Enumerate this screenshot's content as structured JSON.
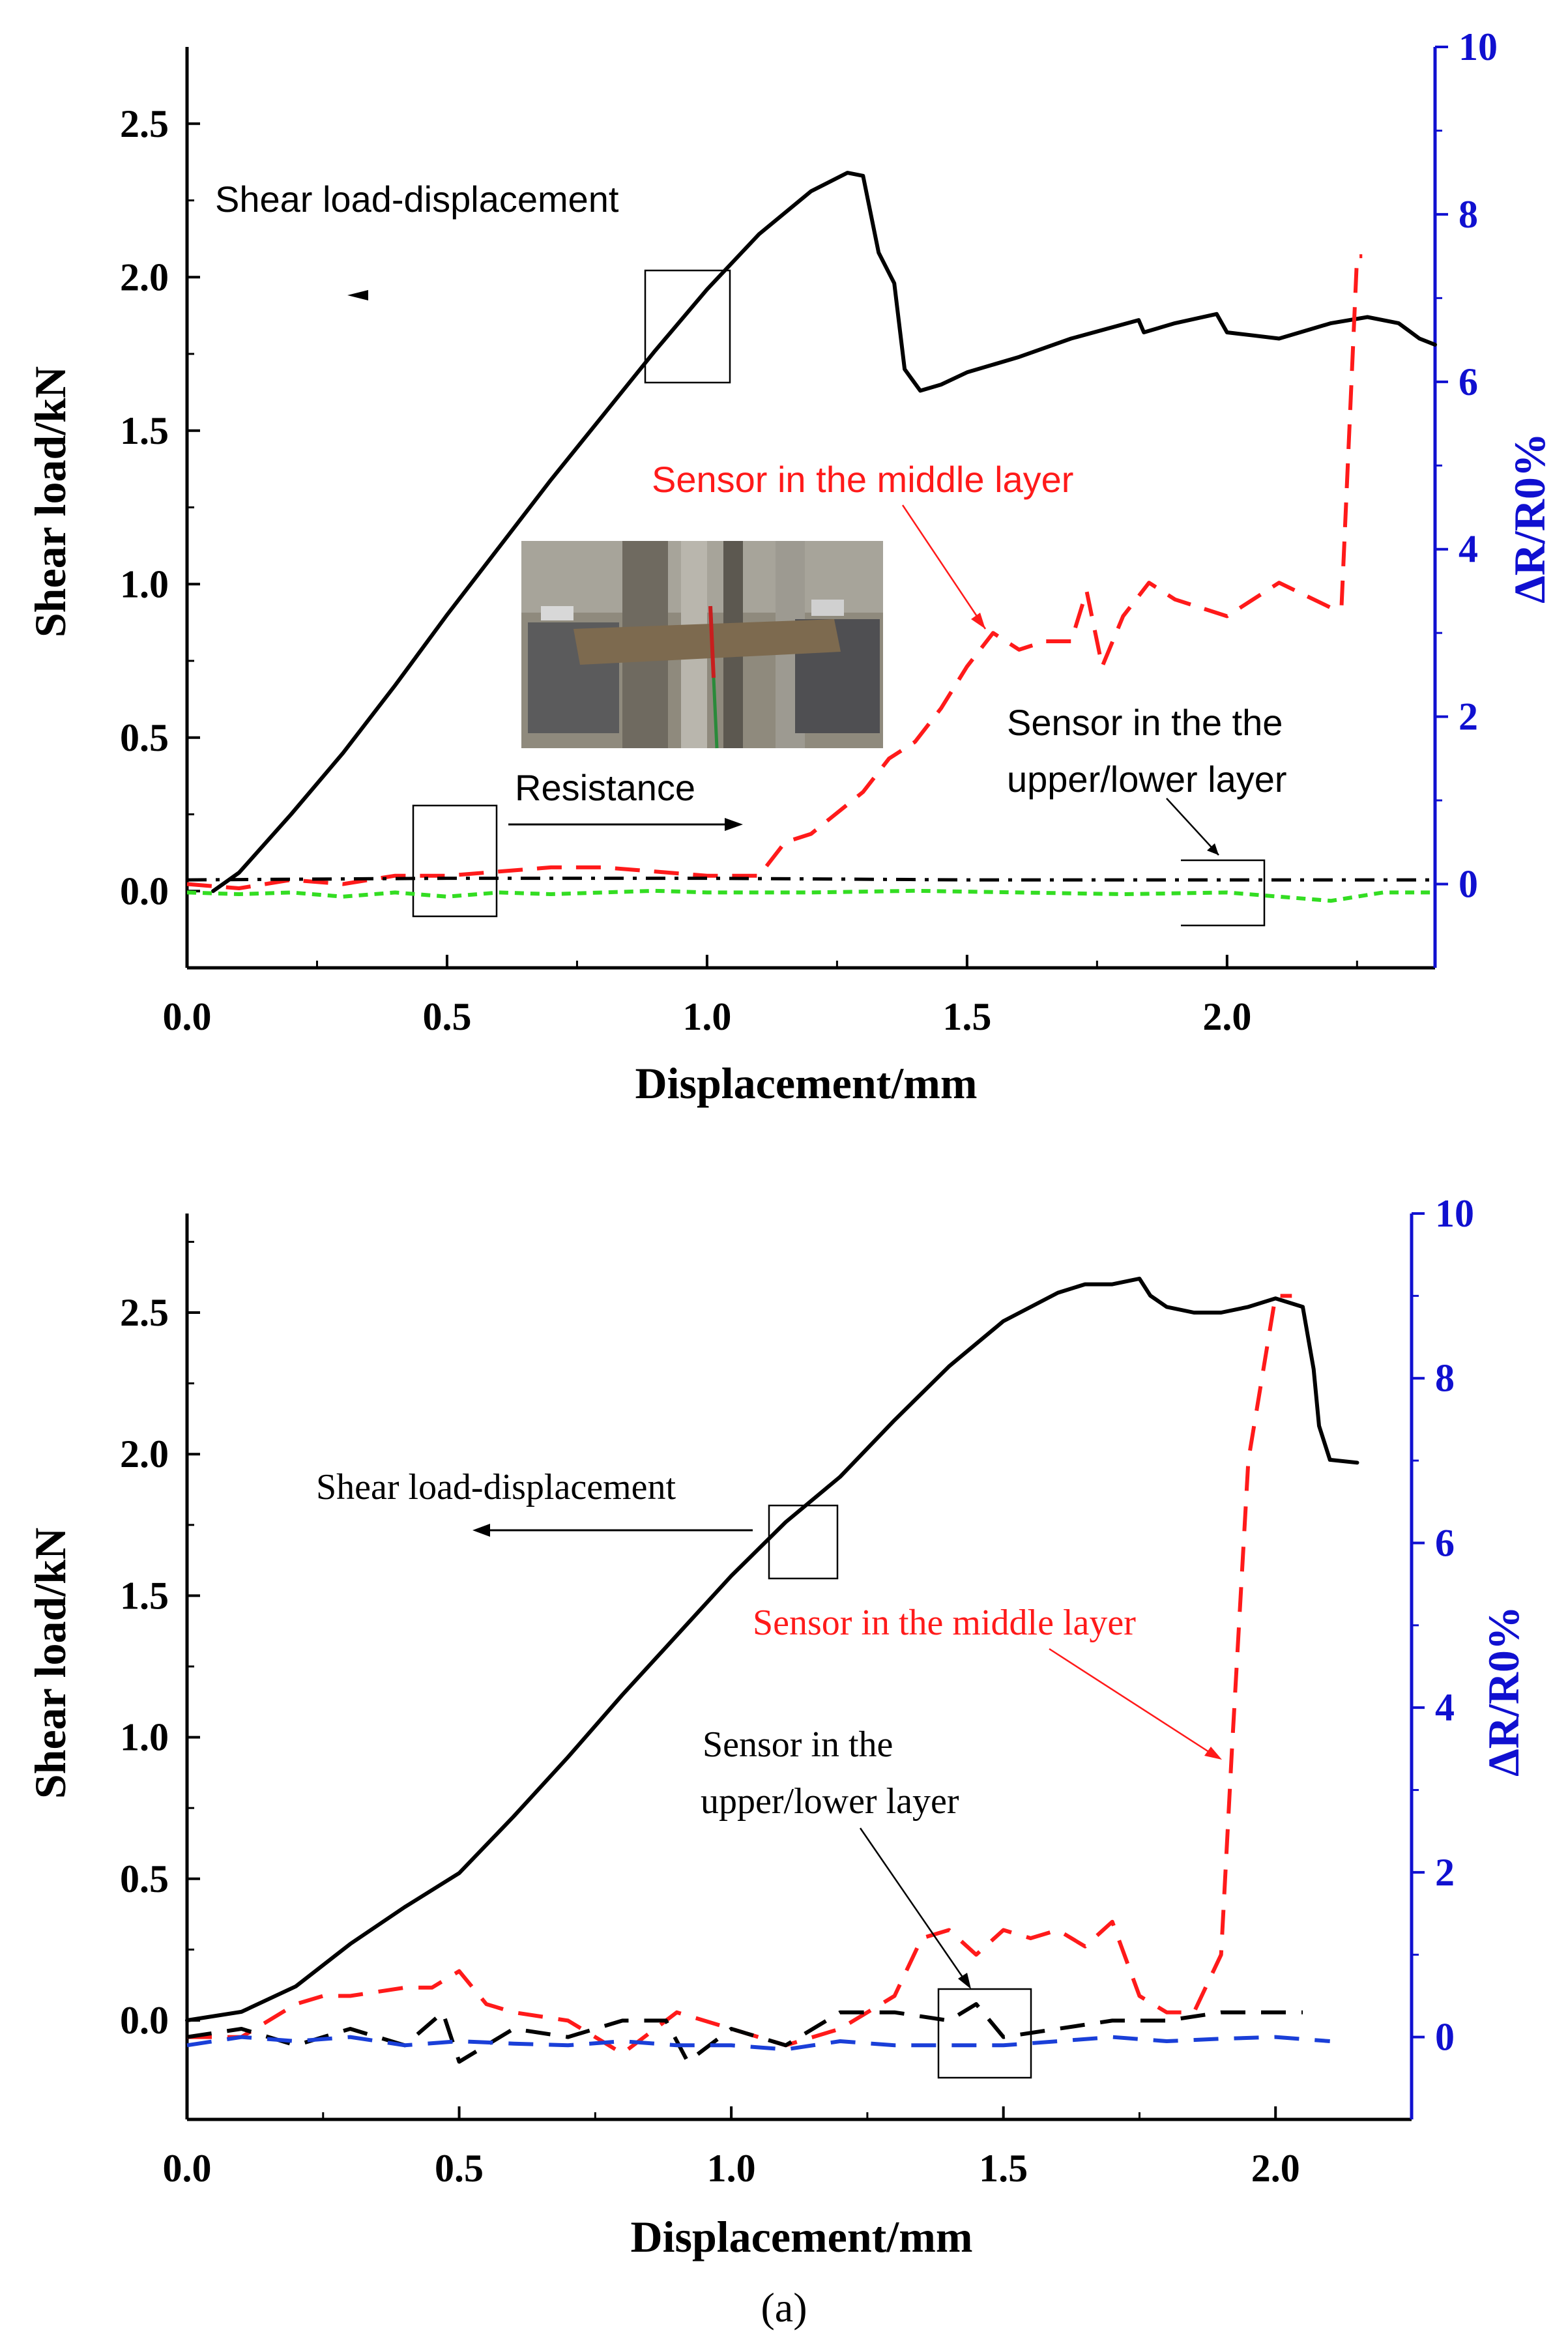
{
  "caption": "(a)",
  "colors": {
    "axis": "#000000",
    "right_axis": "#1010d0",
    "load_curve": "#000000",
    "middle_sensor": "#ff1a1a",
    "outer_sensor": "#000000",
    "outer_sensor_2_top": "#33dd22",
    "outer_sensor_2_bottom": "#1a3fd8",
    "photo_bg": "#8a8474"
  },
  "chart_data": [
    {
      "type": "line",
      "xlabel": "Displacement/mm",
      "ylabel": "Shear load/kN",
      "y2label": "ΔR/R0%",
      "xlim": [
        0,
        2.4
      ],
      "ylim": [
        -0.25,
        2.75
      ],
      "y2lim": [
        -1,
        10
      ],
      "xticks": [
        "0.0",
        "0.5",
        "1.0",
        "1.5",
        "2.0"
      ],
      "yticks": [
        "0.0",
        "0.5",
        "1.0",
        "1.5",
        "2.0",
        "2.5"
      ],
      "y2ticks": [
        "0",
        "2",
        "4",
        "6",
        "8",
        "10"
      ],
      "annotations": {
        "load": "Shear load-displacement",
        "middle": "Sensor in the middle layer",
        "outer_line1": "Sensor in the the",
        "outer_line2": "upper/lower layer",
        "resistance": "Resistance"
      },
      "series": [
        {
          "axis": "left",
          "style": "solid",
          "x": [
            0.05,
            0.1,
            0.2,
            0.3,
            0.4,
            0.5,
            0.6,
            0.7,
            0.8,
            0.9,
            1.0,
            1.1,
            1.2,
            1.27,
            1.3,
            1.33,
            1.36,
            1.38,
            1.41,
            1.45,
            1.5,
            1.6,
            1.7,
            1.83,
            1.84,
            1.9,
            1.98,
            2.0,
            2.05,
            2.1,
            2.2,
            2.27,
            2.33,
            2.37,
            2.4
          ],
          "y": [
            0.0,
            0.06,
            0.25,
            0.45,
            0.67,
            0.9,
            1.12,
            1.34,
            1.55,
            1.76,
            1.96,
            2.14,
            2.28,
            2.34,
            2.33,
            2.08,
            1.98,
            1.7,
            1.63,
            1.65,
            1.69,
            1.74,
            1.8,
            1.86,
            1.82,
            1.85,
            1.88,
            1.82,
            1.81,
            1.8,
            1.85,
            1.87,
            1.85,
            1.8,
            1.78
          ]
        },
        {
          "axis": "right",
          "style": "dashed",
          "x": [
            0.0,
            0.1,
            0.2,
            0.3,
            0.4,
            0.5,
            0.6,
            0.7,
            0.8,
            0.9,
            1.0,
            1.1,
            1.15,
            1.2,
            1.3,
            1.35,
            1.4,
            1.45,
            1.5,
            1.55,
            1.6,
            1.65,
            1.7,
            1.73,
            1.76,
            1.8,
            1.85,
            1.9,
            2.0,
            2.1,
            2.2,
            2.22,
            2.25,
            2.26
          ],
          "y": [
            0.0,
            -0.05,
            0.05,
            0.0,
            0.1,
            0.1,
            0.15,
            0.2,
            0.2,
            0.15,
            0.1,
            0.1,
            0.5,
            0.6,
            1.1,
            1.5,
            1.7,
            2.1,
            2.6,
            3.0,
            2.8,
            2.9,
            2.9,
            3.5,
            2.6,
            3.2,
            3.6,
            3.4,
            3.2,
            3.6,
            3.3,
            3.3,
            7.5,
            7.5
          ]
        },
        {
          "axis": "right",
          "style": "dash-dot",
          "x": [
            0.0,
            0.5,
            1.0,
            1.5,
            2.0,
            2.4
          ],
          "y": [
            0.05,
            0.07,
            0.07,
            0.05,
            0.05,
            0.05
          ]
        },
        {
          "axis": "right",
          "style": "dotted",
          "x": [
            0.0,
            0.1,
            0.2,
            0.3,
            0.4,
            0.5,
            0.6,
            0.7,
            0.8,
            0.9,
            1.0,
            1.2,
            1.4,
            1.6,
            1.8,
            2.0,
            2.1,
            2.2,
            2.3,
            2.4
          ],
          "y": [
            -0.1,
            -0.12,
            -0.1,
            -0.15,
            -0.1,
            -0.15,
            -0.1,
            -0.12,
            -0.1,
            -0.08,
            -0.1,
            -0.1,
            -0.08,
            -0.1,
            -0.12,
            -0.1,
            -0.15,
            -0.2,
            -0.1,
            -0.1
          ]
        }
      ]
    },
    {
      "type": "line",
      "xlabel": "Displacement/mm",
      "ylabel": "Shear load/kN",
      "y2label": "ΔR/R0%",
      "xlim": [
        0,
        2.25
      ],
      "ylim": [
        -0.35,
        2.85
      ],
      "y2lim": [
        -1,
        10
      ],
      "xticks": [
        "0.0",
        "0.5",
        "1.0",
        "1.5",
        "2.0"
      ],
      "yticks": [
        "0.0",
        "0.5",
        "1.0",
        "1.5",
        "2.0",
        "2.5"
      ],
      "y2ticks": [
        "0",
        "2",
        "4",
        "6",
        "8",
        "10"
      ],
      "annotations": {
        "load": "Shear load-displacement",
        "middle": "Sensor in the middle layer",
        "outer_line1": "Sensor in the",
        "outer_line2": "upper/lower layer"
      },
      "series": [
        {
          "axis": "left",
          "style": "solid",
          "x": [
            0.0,
            0.1,
            0.2,
            0.3,
            0.4,
            0.5,
            0.6,
            0.7,
            0.8,
            0.9,
            1.0,
            1.1,
            1.2,
            1.3,
            1.4,
            1.5,
            1.6,
            1.65,
            1.7,
            1.75,
            1.77,
            1.8,
            1.85,
            1.9,
            1.95,
            2.0,
            2.05,
            2.07,
            2.08,
            2.1,
            2.15
          ],
          "y": [
            0.0,
            0.03,
            0.12,
            0.27,
            0.4,
            0.52,
            0.72,
            0.93,
            1.15,
            1.36,
            1.57,
            1.76,
            1.92,
            2.12,
            2.31,
            2.47,
            2.57,
            2.6,
            2.6,
            2.62,
            2.56,
            2.52,
            2.5,
            2.5,
            2.52,
            2.55,
            2.52,
            2.3,
            2.1,
            1.98,
            1.97
          ]
        },
        {
          "axis": "right",
          "style": "dashed",
          "x": [
            0.0,
            0.1,
            0.2,
            0.25,
            0.3,
            0.4,
            0.45,
            0.5,
            0.55,
            0.6,
            0.7,
            0.8,
            0.9,
            1.0,
            1.1,
            1.2,
            1.3,
            1.35,
            1.4,
            1.45,
            1.5,
            1.55,
            1.6,
            1.65,
            1.7,
            1.75,
            1.8,
            1.85,
            1.9,
            1.92,
            1.95,
            2.0,
            2.03
          ],
          "y": [
            0.0,
            0.0,
            0.4,
            0.5,
            0.5,
            0.6,
            0.6,
            0.8,
            0.4,
            0.3,
            0.2,
            -0.2,
            0.3,
            0.1,
            -0.1,
            0.1,
            0.5,
            1.2,
            1.3,
            1.0,
            1.3,
            1.2,
            1.3,
            1.1,
            1.4,
            0.5,
            0.3,
            0.3,
            1.0,
            3.5,
            7.0,
            9.0,
            9.0
          ]
        },
        {
          "axis": "right",
          "style": "dashed",
          "x": [
            0.0,
            0.1,
            0.2,
            0.3,
            0.4,
            0.47,
            0.5,
            0.6,
            0.7,
            0.8,
            0.88,
            0.92,
            1.0,
            1.1,
            1.2,
            1.3,
            1.4,
            1.45,
            1.5,
            1.6,
            1.7,
            1.8,
            1.9,
            2.0,
            2.05
          ],
          "y": [
            0.0,
            0.1,
            -0.1,
            0.1,
            -0.1,
            0.3,
            -0.3,
            0.1,
            0.0,
            0.2,
            0.2,
            -0.3,
            0.1,
            -0.1,
            0.3,
            0.3,
            0.2,
            0.4,
            0.0,
            0.1,
            0.2,
            0.2,
            0.3,
            0.3,
            0.3
          ]
        },
        {
          "axis": "right",
          "style": "dashed",
          "x": [
            0.0,
            0.1,
            0.2,
            0.3,
            0.4,
            0.5,
            0.6,
            0.7,
            0.8,
            0.9,
            1.0,
            1.1,
            1.2,
            1.3,
            1.4,
            1.5,
            1.6,
            1.7,
            1.8,
            1.9,
            2.0,
            2.1
          ],
          "y": [
            -0.1,
            0.0,
            -0.05,
            0.0,
            -0.1,
            -0.05,
            -0.08,
            -0.1,
            -0.05,
            -0.1,
            -0.1,
            -0.15,
            -0.05,
            -0.1,
            -0.1,
            -0.1,
            -0.05,
            0.0,
            -0.05,
            -0.02,
            0.0,
            -0.05
          ]
        }
      ]
    }
  ]
}
